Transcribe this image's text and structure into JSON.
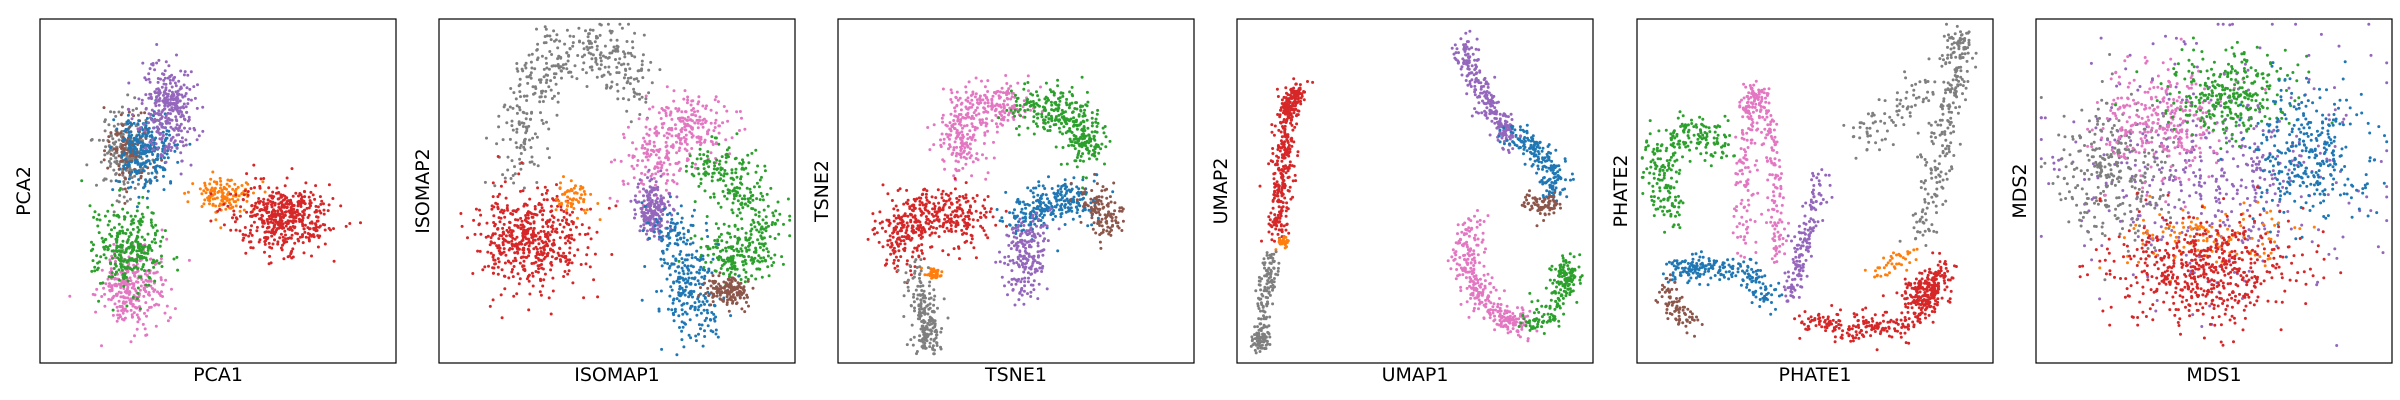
{
  "figure": {
    "panels": [
      {
        "id": "pca",
        "xlabel": "PCA1",
        "ylabel": "PCA2"
      },
      {
        "id": "isomap",
        "xlabel": "ISOMAP1",
        "ylabel": "ISOMAP2"
      },
      {
        "id": "tsne",
        "xlabel": "TSNE1",
        "ylabel": "TSNE2"
      },
      {
        "id": "umap",
        "xlabel": "UMAP1",
        "ylabel": "UMAP2"
      },
      {
        "id": "phate",
        "xlabel": "PHATE1",
        "ylabel": "PHATE2"
      },
      {
        "id": "mds",
        "xlabel": "MDS1",
        "ylabel": "MDS2"
      }
    ]
  },
  "palette": {
    "blue": "#1f77b4",
    "orange": "#ff7f0e",
    "green": "#2ca02c",
    "red": "#d62728",
    "purple": "#9467bd",
    "brown": "#8c564b",
    "pink": "#e377c2",
    "gray": "#7f7f7f"
  },
  "chart_data": [
    {
      "type": "scatter",
      "xlabel": "PCA1",
      "ylabel": "PCA2",
      "xlim": [
        0,
        1
      ],
      "ylim": [
        0,
        1
      ],
      "ticks": "none",
      "clusters": [
        {
          "color": "pink",
          "shape": "blob",
          "center": [
            0.26,
            0.22
          ],
          "radius": [
            0.1,
            0.14
          ],
          "count": 300
        },
        {
          "color": "green",
          "shape": "blob",
          "center": [
            0.25,
            0.33
          ],
          "radius": [
            0.1,
            0.14
          ],
          "count": 300
        },
        {
          "color": "gray",
          "shape": "blob",
          "center": [
            0.24,
            0.62
          ],
          "radius": [
            0.09,
            0.14
          ],
          "count": 200
        },
        {
          "color": "brown",
          "shape": "blob",
          "center": [
            0.25,
            0.62
          ],
          "radius": [
            0.07,
            0.12
          ],
          "count": 120
        },
        {
          "color": "blue",
          "shape": "blob",
          "center": [
            0.3,
            0.62
          ],
          "radius": [
            0.08,
            0.13
          ],
          "count": 260
        },
        {
          "color": "purple",
          "shape": "blob",
          "center": [
            0.36,
            0.74
          ],
          "radius": [
            0.09,
            0.14
          ],
          "count": 320
        },
        {
          "color": "orange",
          "shape": "blob",
          "center": [
            0.52,
            0.49
          ],
          "radius": [
            0.1,
            0.06
          ],
          "count": 130
        },
        {
          "color": "red",
          "shape": "blob",
          "center": [
            0.68,
            0.42
          ],
          "radius": [
            0.15,
            0.11
          ],
          "count": 480
        }
      ]
    },
    {
      "type": "scatter",
      "xlabel": "ISOMAP1",
      "ylabel": "ISOMAP2",
      "xlim": [
        0,
        1
      ],
      "ylim": [
        0,
        1
      ],
      "ticks": "none",
      "clusters": [
        {
          "color": "gray",
          "shape": "curve",
          "path": [
            [
              0.22,
              0.55
            ],
            [
              0.25,
              0.78
            ],
            [
              0.35,
              0.92
            ],
            [
              0.48,
              0.9
            ],
            [
              0.57,
              0.78
            ]
          ],
          "spread": 0.04,
          "count": 380
        },
        {
          "color": "red",
          "shape": "blob",
          "center": [
            0.25,
            0.36
          ],
          "radius": [
            0.18,
            0.16
          ],
          "count": 520
        },
        {
          "color": "orange",
          "shape": "blob",
          "center": [
            0.38,
            0.48
          ],
          "radius": [
            0.06,
            0.05
          ],
          "count": 60
        },
        {
          "color": "pink",
          "shape": "curve",
          "path": [
            [
              0.57,
              0.55
            ],
            [
              0.64,
              0.64
            ],
            [
              0.7,
              0.7
            ],
            [
              0.75,
              0.68
            ]
          ],
          "spread": 0.05,
          "count": 320
        },
        {
          "color": "purple",
          "shape": "blob",
          "center": [
            0.6,
            0.45
          ],
          "radius": [
            0.05,
            0.1
          ],
          "count": 200
        },
        {
          "color": "green",
          "shape": "curve",
          "path": [
            [
              0.73,
              0.58
            ],
            [
              0.83,
              0.55
            ],
            [
              0.9,
              0.42
            ],
            [
              0.86,
              0.28
            ],
            [
              0.76,
              0.35
            ]
          ],
          "spread": 0.04,
          "count": 420
        },
        {
          "color": "blue",
          "shape": "curve",
          "path": [
            [
              0.65,
              0.42
            ],
            [
              0.68,
              0.3
            ],
            [
              0.72,
              0.18
            ],
            [
              0.72,
              0.1
            ]
          ],
          "spread": 0.04,
          "count": 300
        },
        {
          "color": "brown",
          "shape": "blob",
          "center": [
            0.81,
            0.21
          ],
          "radius": [
            0.07,
            0.05
          ],
          "count": 150
        }
      ]
    },
    {
      "type": "scatter",
      "xlabel": "TSNE1",
      "ylabel": "TSNE2",
      "xlim": [
        0,
        1
      ],
      "ylim": [
        0,
        1
      ],
      "ticks": "none",
      "clusters": [
        {
          "color": "pink",
          "shape": "curve",
          "path": [
            [
              0.37,
              0.58
            ],
            [
              0.33,
              0.67
            ],
            [
              0.37,
              0.74
            ],
            [
              0.46,
              0.76
            ],
            [
              0.5,
              0.74
            ]
          ],
          "spread": 0.035,
          "count": 340
        },
        {
          "color": "green",
          "shape": "curve",
          "path": [
            [
              0.52,
              0.74
            ],
            [
              0.61,
              0.75
            ],
            [
              0.68,
              0.69
            ],
            [
              0.7,
              0.59
            ]
          ],
          "spread": 0.035,
          "count": 340
        },
        {
          "color": "blue",
          "shape": "curve",
          "path": [
            [
              0.49,
              0.42
            ],
            [
              0.56,
              0.45
            ],
            [
              0.64,
              0.47
            ],
            [
              0.7,
              0.48
            ]
          ],
          "spread": 0.03,
          "count": 260
        },
        {
          "color": "brown",
          "shape": "curve",
          "path": [
            [
              0.71,
              0.5
            ],
            [
              0.75,
              0.44
            ],
            [
              0.75,
              0.38
            ]
          ],
          "spread": 0.025,
          "count": 120
        },
        {
          "color": "purple",
          "shape": "curve",
          "path": [
            [
              0.53,
              0.4
            ],
            [
              0.53,
              0.3
            ],
            [
              0.52,
              0.22
            ]
          ],
          "spread": 0.03,
          "count": 200
        },
        {
          "color": "red",
          "shape": "curve",
          "path": [
            [
              0.17,
              0.32
            ],
            [
              0.18,
              0.4
            ],
            [
              0.25,
              0.44
            ],
            [
              0.33,
              0.44
            ],
            [
              0.37,
              0.4
            ]
          ],
          "spread": 0.04,
          "count": 420
        },
        {
          "color": "orange",
          "shape": "blob",
          "center": [
            0.27,
            0.26
          ],
          "radius": [
            0.03,
            0.015
          ],
          "count": 40
        },
        {
          "color": "gray",
          "shape": "curve",
          "path": [
            [
              0.22,
              0.27
            ],
            [
              0.24,
              0.17
            ],
            [
              0.26,
              0.09
            ],
            [
              0.25,
              0.05
            ]
          ],
          "spread": 0.02,
          "count": 200
        }
      ]
    },
    {
      "type": "scatter",
      "xlabel": "UMAP1",
      "ylabel": "UMAP2",
      "xlim": [
        0,
        1
      ],
      "ylim": [
        0,
        1
      ],
      "ticks": "none",
      "clusters": [
        {
          "color": "red",
          "shape": "curve",
          "path": [
            [
              0.11,
              0.36
            ],
            [
              0.13,
              0.55
            ],
            [
              0.14,
              0.72
            ],
            [
              0.17,
              0.8
            ]
          ],
          "spread": 0.015,
          "count": 420
        },
        {
          "color": "orange",
          "shape": "blob",
          "center": [
            0.13,
            0.35
          ],
          "radius": [
            0.02,
            0.015
          ],
          "count": 30
        },
        {
          "color": "gray",
          "shape": "curve",
          "path": [
            [
              0.1,
              0.32
            ],
            [
              0.08,
              0.2
            ],
            [
              0.07,
              0.08
            ],
            [
              0.06,
              0.05
            ]
          ],
          "spread": 0.012,
          "count": 200
        },
        {
          "color": "purple",
          "shape": "curve",
          "path": [
            [
              0.64,
              0.93
            ],
            [
              0.65,
              0.86
            ],
            [
              0.69,
              0.78
            ],
            [
              0.74,
              0.7
            ],
            [
              0.76,
              0.64
            ]
          ],
          "spread": 0.018,
          "count": 260
        },
        {
          "color": "blue",
          "shape": "curve",
          "path": [
            [
              0.77,
              0.66
            ],
            [
              0.84,
              0.62
            ],
            [
              0.89,
              0.55
            ],
            [
              0.88,
              0.48
            ]
          ],
          "spread": 0.02,
          "count": 200
        },
        {
          "color": "brown",
          "shape": "curve",
          "path": [
            [
              0.82,
              0.47
            ],
            [
              0.86,
              0.45
            ],
            [
              0.89,
              0.47
            ]
          ],
          "spread": 0.015,
          "count": 80
        },
        {
          "color": "pink",
          "shape": "curve",
          "path": [
            [
              0.66,
              0.42
            ],
            [
              0.64,
              0.3
            ],
            [
              0.68,
              0.2
            ],
            [
              0.76,
              0.12
            ],
            [
              0.8,
              0.11
            ]
          ],
          "spread": 0.022,
          "count": 320
        },
        {
          "color": "green",
          "shape": "curve",
          "path": [
            [
              0.81,
              0.11
            ],
            [
              0.89,
              0.15
            ],
            [
              0.93,
              0.25
            ],
            [
              0.93,
              0.28
            ]
          ],
          "spread": 0.02,
          "count": 200
        }
      ]
    },
    {
      "type": "scatter",
      "xlabel": "PHATE1",
      "ylabel": "PHATE2",
      "xlim": [
        0,
        1
      ],
      "ylim": [
        0,
        1
      ],
      "ticks": "none",
      "clusters": [
        {
          "color": "gray",
          "shape": "curve",
          "path": [
            [
              0.8,
              0.38
            ],
            [
              0.84,
              0.55
            ],
            [
              0.86,
              0.72
            ],
            [
              0.9,
              0.88
            ],
            [
              0.9,
              0.95
            ]
          ],
          "spread": 0.025,
          "count": 260
        },
        {
          "color": "gray",
          "shape": "curve",
          "path": [
            [
              0.62,
              0.65
            ],
            [
              0.72,
              0.72
            ],
            [
              0.82,
              0.82
            ]
          ],
          "spread": 0.03,
          "count": 80
        },
        {
          "color": "green",
          "shape": "curve",
          "path": [
            [
              0.1,
              0.4
            ],
            [
              0.06,
              0.55
            ],
            [
              0.08,
              0.64
            ],
            [
              0.18,
              0.67
            ],
            [
              0.25,
              0.62
            ]
          ],
          "spread": 0.03,
          "count": 260
        },
        {
          "color": "pink",
          "shape": "curve",
          "path": [
            [
              0.3,
              0.3
            ],
            [
              0.3,
              0.55
            ],
            [
              0.31,
              0.72
            ],
            [
              0.33,
              0.8
            ],
            [
              0.36,
              0.72
            ],
            [
              0.39,
              0.5
            ],
            [
              0.4,
              0.3
            ]
          ],
          "spread": 0.015,
          "count": 320
        },
        {
          "color": "purple",
          "shape": "curve",
          "path": [
            [
              0.43,
              0.18
            ],
            [
              0.46,
              0.3
            ],
            [
              0.48,
              0.4
            ],
            [
              0.52,
              0.55
            ]
          ],
          "spread": 0.015,
          "count": 160
        },
        {
          "color": "blue",
          "shape": "curve",
          "path": [
            [
              0.1,
              0.27
            ],
            [
              0.18,
              0.28
            ],
            [
              0.3,
              0.27
            ],
            [
              0.38,
              0.18
            ]
          ],
          "spread": 0.02,
          "count": 220
        },
        {
          "color": "brown",
          "shape": "curve",
          "path": [
            [
              0.09,
              0.23
            ],
            [
              0.1,
              0.15
            ],
            [
              0.16,
              0.12
            ]
          ],
          "spread": 0.015,
          "count": 80
        },
        {
          "color": "red",
          "shape": "curve",
          "path": [
            [
              0.46,
              0.12
            ],
            [
              0.58,
              0.1
            ],
            [
              0.7,
              0.1
            ],
            [
              0.78,
              0.13
            ],
            [
              0.83,
              0.22
            ],
            [
              0.86,
              0.28
            ]
          ],
          "spread": 0.02,
          "count": 320
        },
        {
          "color": "red",
          "shape": "blob",
          "center": [
            0.8,
            0.2
          ],
          "radius": [
            0.07,
            0.06
          ],
          "count": 140
        },
        {
          "color": "orange",
          "shape": "curve",
          "path": [
            [
              0.68,
              0.26
            ],
            [
              0.72,
              0.3
            ],
            [
              0.77,
              0.32
            ]
          ],
          "spread": 0.015,
          "count": 40
        }
      ]
    },
    {
      "type": "scatter",
      "xlabel": "MDS1",
      "ylabel": "MDS2",
      "xlim": [
        0,
        1
      ],
      "ylim": [
        0,
        1
      ],
      "ticks": "none",
      "clusters": [
        {
          "color": "purple",
          "shape": "blob",
          "center": [
            0.5,
            0.55
          ],
          "radius": [
            0.45,
            0.4
          ],
          "count": 500
        },
        {
          "color": "gray",
          "shape": "blob",
          "center": [
            0.22,
            0.55
          ],
          "radius": [
            0.17,
            0.23
          ],
          "count": 300
        },
        {
          "color": "pink",
          "shape": "blob",
          "center": [
            0.35,
            0.7
          ],
          "radius": [
            0.2,
            0.18
          ],
          "count": 300
        },
        {
          "color": "green",
          "shape": "blob",
          "center": [
            0.55,
            0.78
          ],
          "radius": [
            0.2,
            0.14
          ],
          "count": 300
        },
        {
          "color": "blue",
          "shape": "blob",
          "center": [
            0.77,
            0.6
          ],
          "radius": [
            0.17,
            0.22
          ],
          "count": 320
        },
        {
          "color": "orange",
          "shape": "blob",
          "center": [
            0.47,
            0.36
          ],
          "radius": [
            0.25,
            0.1
          ],
          "count": 120
        },
        {
          "color": "red",
          "shape": "blob",
          "center": [
            0.47,
            0.27
          ],
          "radius": [
            0.3,
            0.17
          ],
          "count": 560
        }
      ]
    }
  ]
}
